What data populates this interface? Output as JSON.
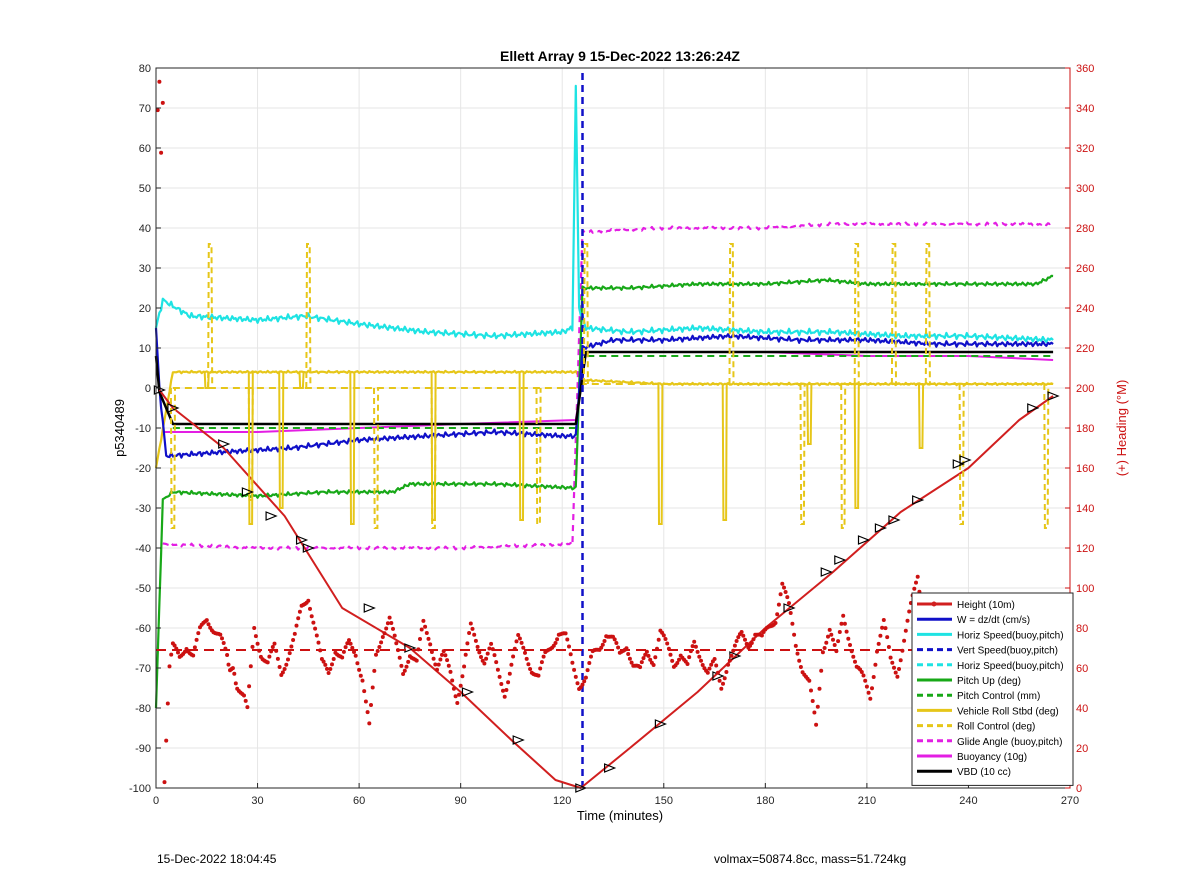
{
  "footer": {
    "left": "15-Dec-2022 18:04:45",
    "right": "volmax=50874.8cc, mass=51.724kg"
  },
  "colors": {
    "height": "#d11f1f",
    "heading": "#cc1111",
    "w": "#1010c8",
    "horiz_speed": "#1ee3e3",
    "pitch_up": "#18a818",
    "roll": "#e6c619",
    "glide": "#e31ee3",
    "buoyancy": "#e31ee3",
    "vbd": "#000000",
    "right_axis": "#cc1111"
  },
  "chart_data": {
    "type": "line",
    "title": "Ellett Array 9 15-Dec-2022 13:26:24Z",
    "xlabel": "Time (minutes)",
    "ylabel": "p5340489",
    "ylabel_right": "(+) Heading (°M)",
    "xlim": [
      0,
      270
    ],
    "ylim": [
      -100,
      80
    ],
    "ylim_right": [
      0,
      360
    ],
    "xticks": [
      0,
      30,
      60,
      90,
      120,
      150,
      180,
      210,
      240,
      270
    ],
    "yticks": [
      -100,
      -90,
      -80,
      -70,
      -60,
      -50,
      -40,
      -30,
      -20,
      -10,
      0,
      10,
      20,
      30,
      40,
      50,
      60,
      70,
      80
    ],
    "yticks_right": [
      0,
      20,
      40,
      60,
      80,
      100,
      120,
      140,
      160,
      180,
      200,
      220,
      240,
      260,
      280,
      300,
      320,
      340,
      360
    ],
    "grid": true,
    "legend_position": "bottom-right",
    "apogee_time": 125.5,
    "series": [
      {
        "name": "Height (10m)",
        "style": "solid-red-markers",
        "x": [
          1,
          5,
          20,
          38,
          55,
          75,
          90,
          105,
          118,
          125.5,
          140,
          160,
          180,
          200,
          220,
          240,
          255,
          265
        ],
        "y": [
          -0.5,
          -5,
          -15,
          -32,
          -55,
          -65,
          -76,
          -88,
          -98,
          -100,
          -90,
          -76,
          -60,
          -46,
          -31,
          -20,
          -8,
          -2
        ]
      },
      {
        "name": "W = dz/dt (cm/s)",
        "style": "solid-blue",
        "x": [
          0,
          1,
          3,
          20,
          40,
          60,
          80,
          100,
          120,
          124,
          126,
          135,
          150,
          170,
          190,
          210,
          230,
          250,
          265
        ],
        "y": [
          15,
          0,
          -17,
          -16,
          -15,
          -13,
          -12,
          -11,
          -12,
          -12,
          10,
          12,
          12,
          13,
          12,
          12,
          11,
          11,
          11
        ]
      },
      {
        "name": "Horiz Speed(buoy,pitch)",
        "style": "solid-cyan",
        "x": [
          0,
          2,
          10,
          30,
          44,
          60,
          80,
          100,
          120,
          123,
          124,
          125,
          127,
          140,
          160,
          180,
          200,
          220,
          240,
          265
        ],
        "y": [
          15,
          22,
          18,
          17,
          18,
          16,
          14,
          13,
          14,
          15,
          75,
          20,
          15,
          14,
          15,
          14,
          14,
          13,
          13,
          12
        ]
      },
      {
        "name": "Vert Speed(buoy,pitch)",
        "style": "dashed-blue",
        "x": [
          126,
          126
        ],
        "y": [
          -100,
          80
        ]
      },
      {
        "name": "Horiz Speed(buoy,pitch)",
        "style": "dashed-cyan",
        "x": [],
        "y": []
      },
      {
        "name": "Pitch Up (deg)",
        "style": "solid-green",
        "x": [
          0,
          2,
          5,
          30,
          50,
          70,
          75,
          100,
          124,
          126,
          140,
          160,
          180,
          198,
          210,
          220,
          240,
          260,
          265
        ],
        "y": [
          -80,
          -28,
          -26,
          -27,
          -26,
          -26,
          -24,
          -24,
          -25,
          25,
          25,
          26,
          26,
          27,
          26,
          26,
          26,
          26,
          28
        ]
      },
      {
        "name": "Pitch Control (mm)",
        "style": "dashed-green",
        "x": [
          5,
          124,
          126,
          265
        ],
        "y": [
          -10,
          -10,
          8,
          8
        ]
      },
      {
        "name": "Vehicle Roll Stbd (deg)",
        "style": "solid-yellow",
        "x": [
          0,
          5,
          20,
          40,
          60,
          80,
          100,
          124,
          126,
          150,
          180,
          200,
          220,
          240,
          265
        ],
        "y": [
          -20,
          4,
          4,
          4,
          4,
          4,
          4,
          4,
          2,
          1,
          1,
          1,
          1,
          1,
          1
        ]
      },
      {
        "name": "Roll Control (deg)",
        "style": "dashed-yellow",
        "x": [
          5,
          124,
          126,
          265
        ],
        "y": [
          0,
          0,
          1,
          1
        ]
      },
      {
        "name": "Glide Angle (buoy,pitch)",
        "style": "dashed-magenta",
        "x": [
          2,
          30,
          60,
          90,
          123,
          126,
          150,
          180,
          200,
          220,
          240,
          265
        ],
        "y": [
          -39,
          -40,
          -40,
          -40,
          -39,
          39,
          40,
          40,
          41,
          41,
          41,
          41
        ]
      },
      {
        "name": "Buoyancy (10g)",
        "style": "solid-magenta",
        "x": [
          2,
          30,
          60,
          90,
          124,
          127,
          150,
          180,
          210,
          240,
          265
        ],
        "y": [
          -11,
          -11,
          -10,
          -9,
          -8,
          9,
          9,
          9,
          8,
          8,
          7
        ]
      },
      {
        "name": "VBD (10 cc)",
        "style": "solid-black",
        "x": [
          0,
          1,
          5,
          124,
          127,
          140,
          170,
          200,
          240,
          265
        ],
        "y": [
          8,
          -1,
          -9,
          -9,
          9,
          9,
          9,
          9,
          9,
          9
        ]
      }
    ],
    "roll_spikes_solid": [
      {
        "x": 15,
        "y": 0
      },
      {
        "x": 28,
        "y": -34
      },
      {
        "x": 37,
        "y": -30
      },
      {
        "x": 43,
        "y": 0
      },
      {
        "x": 58,
        "y": -34
      },
      {
        "x": 82,
        "y": -33
      },
      {
        "x": 108,
        "y": -33
      },
      {
        "x": 149,
        "y": -34
      },
      {
        "x": 168,
        "y": -33
      },
      {
        "x": 193,
        "y": -14
      },
      {
        "x": 207,
        "y": -30
      },
      {
        "x": 226,
        "y": -15
      }
    ],
    "roll_spikes_dashed": [
      {
        "x": 5,
        "y": -35
      },
      {
        "x": 16,
        "y": 36
      },
      {
        "x": 28,
        "y": -28
      },
      {
        "x": 45,
        "y": 36
      },
      {
        "x": 65,
        "y": -35
      },
      {
        "x": 82,
        "y": -35
      },
      {
        "x": 113,
        "y": -34
      },
      {
        "x": 127,
        "y": 36
      },
      {
        "x": 170,
        "y": 36
      },
      {
        "x": 191,
        "y": -34
      },
      {
        "x": 203,
        "y": -35
      },
      {
        "x": 207,
        "y": 36
      },
      {
        "x": 218,
        "y": 36
      },
      {
        "x": 228,
        "y": 36
      },
      {
        "x": 238,
        "y": -34
      },
      {
        "x": 263,
        "y": -35
      }
    ],
    "heading_mean": 69,
    "heading_points": [
      [
        0.5,
        340
      ],
      [
        1,
        355
      ],
      [
        1.5,
        320
      ],
      [
        2,
        345
      ],
      [
        2.5,
        5
      ],
      [
        3,
        25
      ],
      [
        4,
        60
      ],
      [
        5,
        70
      ],
      [
        7,
        65
      ],
      [
        9,
        72
      ],
      [
        11,
        66
      ],
      [
        13,
        78
      ],
      [
        15,
        85
      ],
      [
        17,
        80
      ],
      [
        19,
        75
      ],
      [
        21,
        65
      ],
      [
        24,
        52
      ],
      [
        26,
        45
      ],
      [
        27,
        38
      ],
      [
        29,
        80
      ],
      [
        31,
        68
      ],
      [
        33,
        62
      ],
      [
        35,
        70
      ],
      [
        37,
        58
      ],
      [
        39,
        66
      ],
      [
        41,
        75
      ],
      [
        43,
        90
      ],
      [
        45,
        96
      ],
      [
        47,
        80
      ],
      [
        49,
        62
      ],
      [
        51,
        58
      ],
      [
        53,
        70
      ],
      [
        55,
        64
      ],
      [
        57,
        72
      ],
      [
        59,
        68
      ],
      [
        61,
        55
      ],
      [
        63,
        30
      ],
      [
        65,
        66
      ],
      [
        67,
        78
      ],
      [
        69,
        85
      ],
      [
        71,
        70
      ],
      [
        73,
        58
      ],
      [
        75,
        68
      ],
      [
        77,
        62
      ],
      [
        79,
        82
      ],
      [
        81,
        74
      ],
      [
        83,
        60
      ],
      [
        85,
        66
      ],
      [
        87,
        58
      ],
      [
        89,
        45
      ],
      [
        91,
        60
      ],
      [
        93,
        80
      ],
      [
        95,
        72
      ],
      [
        97,
        64
      ],
      [
        99,
        70
      ],
      [
        101,
        58
      ],
      [
        103,
        48
      ],
      [
        105,
        62
      ],
      [
        107,
        74
      ],
      [
        109,
        68
      ],
      [
        111,
        60
      ],
      [
        113,
        55
      ],
      [
        115,
        66
      ],
      [
        117,
        72
      ],
      [
        119,
        78
      ],
      [
        121,
        75
      ],
      [
        123,
        62
      ],
      [
        125,
        52
      ],
      [
        127,
        55
      ],
      [
        129,
        66
      ],
      [
        131,
        70
      ],
      [
        133,
        78
      ],
      [
        135,
        74
      ],
      [
        137,
        66
      ],
      [
        139,
        72
      ],
      [
        141,
        62
      ],
      [
        143,
        58
      ],
      [
        145,
        68
      ],
      [
        147,
        64
      ],
      [
        149,
        78
      ],
      [
        151,
        70
      ],
      [
        153,
        62
      ],
      [
        155,
        68
      ],
      [
        157,
        60
      ],
      [
        159,
        72
      ],
      [
        161,
        66
      ],
      [
        163,
        58
      ],
      [
        165,
        62
      ],
      [
        167,
        50
      ],
      [
        169,
        64
      ],
      [
        171,
        70
      ],
      [
        173,
        76
      ],
      [
        175,
        72
      ],
      [
        177,
        78
      ],
      [
        179,
        74
      ],
      [
        181,
        80
      ],
      [
        183,
        85
      ],
      [
        185,
        102
      ],
      [
        187,
        90
      ],
      [
        189,
        72
      ],
      [
        191,
        60
      ],
      [
        193,
        52
      ],
      [
        195,
        30
      ],
      [
        197,
        70
      ],
      [
        199,
        80
      ],
      [
        201,
        66
      ],
      [
        203,
        86
      ],
      [
        205,
        74
      ],
      [
        207,
        60
      ],
      [
        209,
        54
      ],
      [
        211,
        46
      ],
      [
        213,
        70
      ],
      [
        215,
        82
      ],
      [
        217,
        64
      ],
      [
        219,
        58
      ],
      [
        221,
        74
      ],
      [
        223,
        90
      ],
      [
        225,
        106
      ],
      [
        227,
        80
      ],
      [
        229,
        64
      ],
      [
        231,
        52
      ],
      [
        233,
        70
      ],
      [
        235,
        62
      ],
      [
        237,
        58
      ],
      [
        239,
        48
      ],
      [
        241,
        56
      ],
      [
        243,
        64
      ],
      [
        245,
        70
      ],
      [
        247,
        60
      ],
      [
        249,
        66
      ],
      [
        251,
        74
      ],
      [
        253,
        68
      ],
      [
        255,
        78
      ],
      [
        257,
        84
      ],
      [
        259,
        72
      ],
      [
        261,
        60
      ],
      [
        263,
        48
      ],
      [
        265,
        90
      ]
    ],
    "height_triangles": [
      [
        1,
        -0.5
      ],
      [
        5,
        -5
      ],
      [
        20,
        -14
      ],
      [
        27,
        -26
      ],
      [
        34,
        -32
      ],
      [
        43,
        -38
      ],
      [
        45,
        -40
      ],
      [
        63,
        -55
      ],
      [
        75,
        -65
      ],
      [
        92,
        -76
      ],
      [
        107,
        -88
      ],
      [
        125.5,
        -100
      ],
      [
        134,
        -95
      ],
      [
        149,
        -84
      ],
      [
        166,
        -72
      ],
      [
        171,
        -67
      ],
      [
        187,
        -55
      ],
      [
        198,
        -46
      ],
      [
        202,
        -43
      ],
      [
        209,
        -38
      ],
      [
        214,
        -35
      ],
      [
        218,
        -33
      ],
      [
        225,
        -28
      ],
      [
        237,
        -19
      ],
      [
        239,
        -18
      ],
      [
        259,
        -5
      ],
      [
        265,
        -2
      ]
    ]
  }
}
